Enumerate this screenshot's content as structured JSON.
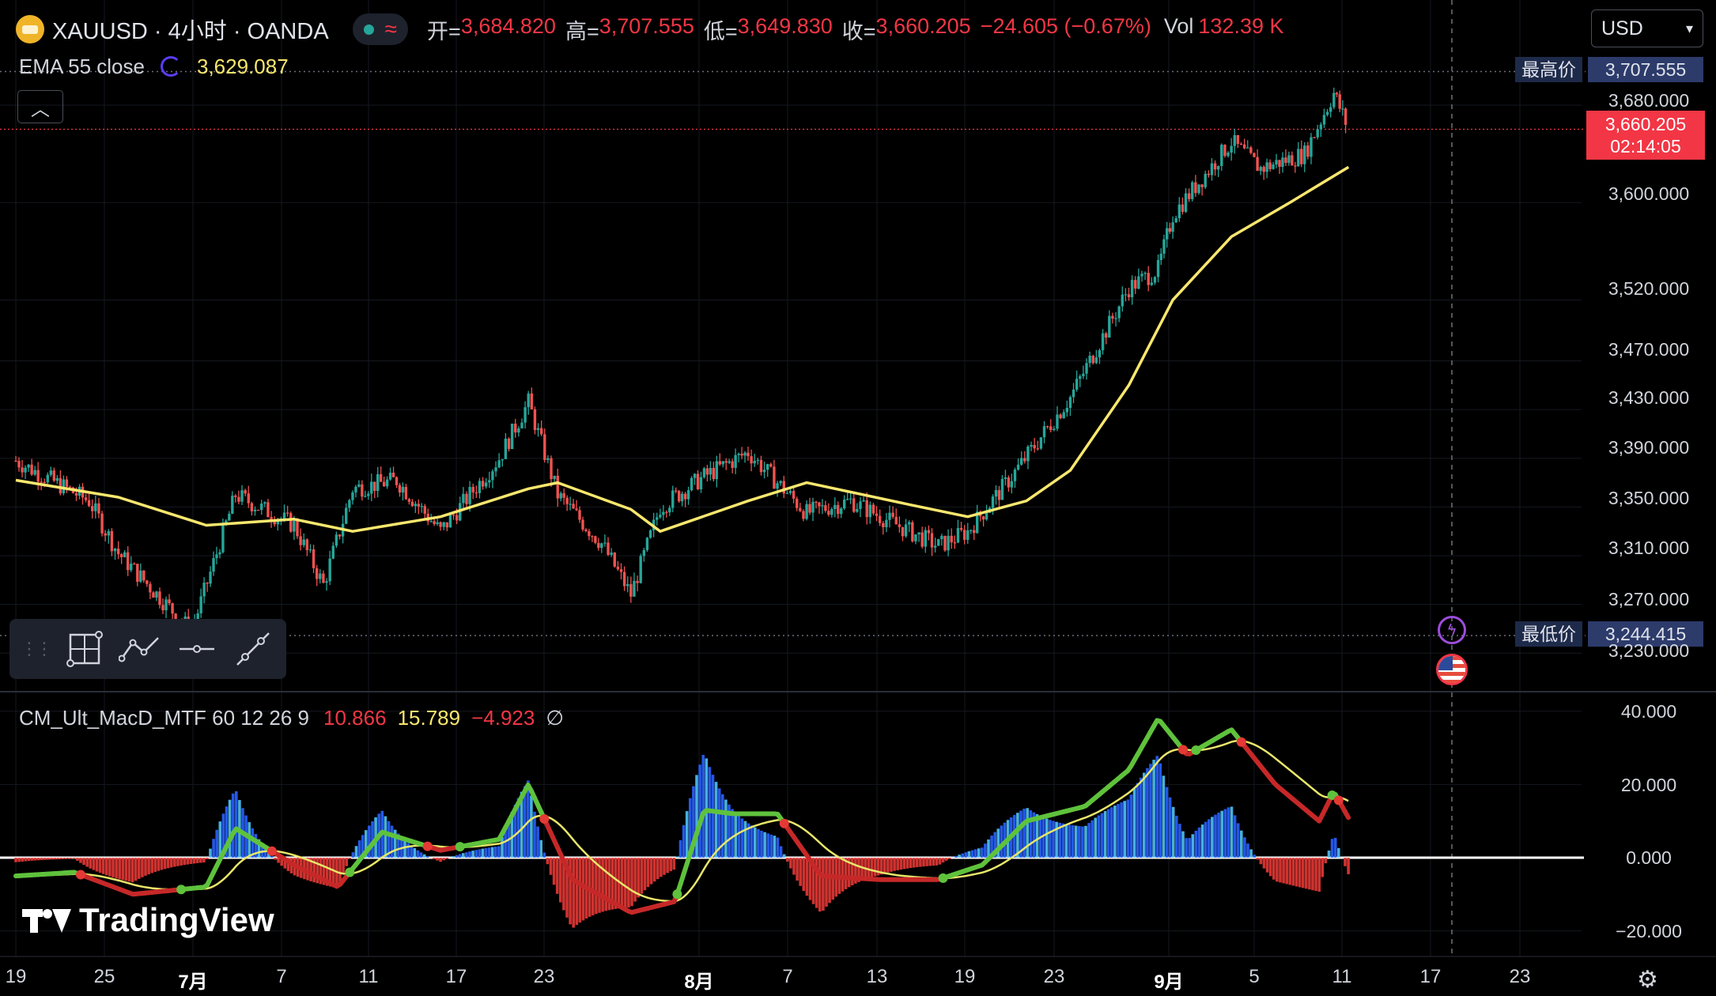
{
  "header": {
    "title": "XAUUSD · 4小时 · OANDA",
    "ohlc": [
      {
        "label": "开=",
        "value": "3,684.820"
      },
      {
        "label": "高=",
        "value": "3,707.555"
      },
      {
        "label": "低=",
        "value": "3,649.830"
      },
      {
        "label": "收=",
        "value": "3,660.205"
      }
    ],
    "change": "−24.605 (−0.67%)",
    "vol_label": "Vol",
    "vol_value": "132.39 K",
    "currency": "USD"
  },
  "ema": {
    "name": "EMA 55 close",
    "value": "3,629.087"
  },
  "macd": {
    "name": "CM_Ult_MacD_MTF 60 12 26 9",
    "v1": "10.866",
    "v2": "15.789",
    "v3": "−4.923",
    "v4": "∅"
  },
  "price_axis": {
    "high_label": "最高价",
    "high_value": "3,707.555",
    "low_label": "最低价",
    "low_value": "3,244.415",
    "last_price": "3,660.205",
    "countdown": "02:14:05",
    "ticks": [
      "3,680.000",
      "3,600.000",
      "3,520.000",
      "3,470.000",
      "3,430.000",
      "3,390.000",
      "3,350.000",
      "3,310.000",
      "3,270.000",
      "3,230.000"
    ]
  },
  "macd_axis": {
    "ticks": [
      "40.000",
      "20.000",
      "0.000",
      "−20.000"
    ]
  },
  "time_axis": {
    "ticks": [
      "19",
      "25",
      "7月",
      "7",
      "11",
      "17",
      "23",
      "8月",
      "7",
      "13",
      "19",
      "23",
      "9月",
      "5",
      "11",
      "17",
      "23"
    ]
  },
  "watermark": "TradingView",
  "colors": {
    "up": "#26a69a",
    "down": "#ef5350",
    "ema": "#f9e76e",
    "macd_green": "#5fc23c",
    "macd_red": "#c62828",
    "signal": "#e8e66a"
  },
  "chart_data": [
    {
      "type": "candlestick",
      "title": "XAUUSD · 4小时 · OANDA",
      "x_labels": [
        "19",
        "25",
        "7月",
        "7",
        "11",
        "17",
        "23",
        "8月",
        "7",
        "13",
        "19",
        "23",
        "9月",
        "5",
        "11",
        "17",
        "23"
      ],
      "y_ticks": [
        3680,
        3600,
        3520,
        3470,
        3430,
        3390,
        3350,
        3310,
        3270,
        3230
      ],
      "ylim": [
        3218,
        3718
      ],
      "series": [
        {
          "name": "EMA 55 close",
          "last": 3629.087
        },
        {
          "name": "XAUUSD",
          "open": 3684.82,
          "high": 3707.555,
          "low": 3649.83,
          "close": 3660.205
        }
      ],
      "session_high": 3707.555,
      "session_low": 3244.415,
      "key_path": [
        [
          "6/18",
          3388
        ],
        [
          "6/23",
          3355
        ],
        [
          "6/25",
          3312
        ],
        [
          "6/30",
          3248
        ],
        [
          "7/3",
          3360
        ],
        [
          "7/7",
          3335
        ],
        [
          "7/9",
          3286
        ],
        [
          "7/11",
          3365
        ],
        [
          "7/14",
          3372
        ],
        [
          "7/17",
          3330
        ],
        [
          "7/21",
          3390
        ],
        [
          "7/23",
          3436
        ],
        [
          "7/25",
          3360
        ],
        [
          "7/28",
          3320
        ],
        [
          "7/30",
          3278
        ],
        [
          "8/1",
          3350
        ],
        [
          "8/4",
          3375
        ],
        [
          "8/7",
          3395
        ],
        [
          "8/11",
          3345
        ],
        [
          "8/14",
          3355
        ],
        [
          "8/18",
          3330
        ],
        [
          "8/20",
          3318
        ],
        [
          "8/22",
          3330
        ],
        [
          "8/25",
          3375
        ],
        [
          "8/29",
          3440
        ],
        [
          "9/2",
          3530
        ],
        [
          "9/4",
          3545
        ],
        [
          "9/5",
          3590
        ],
        [
          "9/9",
          3650
        ],
        [
          "9/11",
          3628
        ],
        [
          "9/14",
          3640
        ],
        [
          "9/16",
          3690
        ],
        [
          "9/17",
          3660
        ]
      ],
      "ema_path": [
        [
          "6/18",
          3372
        ],
        [
          "6/25",
          3358
        ],
        [
          "7/1",
          3335
        ],
        [
          "7/7",
          3340
        ],
        [
          "7/11",
          3330
        ],
        [
          "7/17",
          3342
        ],
        [
          "7/23",
          3365
        ],
        [
          "7/25",
          3370
        ],
        [
          "7/30",
          3348
        ],
        [
          "8/1",
          3330
        ],
        [
          "8/7",
          3355
        ],
        [
          "8/11",
          3370
        ],
        [
          "8/18",
          3352
        ],
        [
          "8/22",
          3342
        ],
        [
          "8/26",
          3355
        ],
        [
          "8/29",
          3380
        ],
        [
          "9/2",
          3450
        ],
        [
          "9/5",
          3520
        ],
        [
          "9/9",
          3572
        ],
        [
          "9/13",
          3600
        ],
        [
          "9/17",
          3629.087
        ]
      ]
    },
    {
      "type": "line",
      "title": "CM_Ult_MacD_MTF 60 12 26 9",
      "ylim": [
        -25,
        45
      ],
      "y_ticks": [
        40,
        20,
        0,
        -20
      ],
      "series": [
        {
          "name": "MACD",
          "last": 10.866,
          "path": [
            [
              "6/18",
              -5
            ],
            [
              "6/22",
              -4
            ],
            [
              "6/26",
              -10
            ],
            [
              "7/1",
              -8
            ],
            [
              "7/3",
              8
            ],
            [
              "7/7",
              -2
            ],
            [
              "7/10",
              -8
            ],
            [
              "7/13",
              7
            ],
            [
              "7/17",
              2
            ],
            [
              "7/21",
              5
            ],
            [
              "7/23",
              20
            ],
            [
              "7/26",
              -6
            ],
            [
              "7/30",
              -15
            ],
            [
              "8/2",
              -12
            ],
            [
              "8/4",
              13
            ],
            [
              "8/6",
              12
            ],
            [
              "8/9",
              12
            ],
            [
              "8/12",
              -5
            ],
            [
              "8/16",
              -6
            ],
            [
              "8/20",
              -6
            ],
            [
              "8/23",
              -2
            ],
            [
              "8/26",
              10
            ],
            [
              "8/30",
              14
            ],
            [
              "9/2",
              24
            ],
            [
              "9/4",
              38
            ],
            [
              "9/6",
              28
            ],
            [
              "9/9",
              35
            ],
            [
              "9/12",
              20
            ],
            [
              "9/15",
              10
            ],
            [
              "9/16",
              18
            ],
            [
              "9/17",
              10.866
            ]
          ]
        },
        {
          "name": "Signal",
          "last": 15.789
        },
        {
          "name": "Histogram",
          "last": -4.923
        }
      ]
    }
  ]
}
